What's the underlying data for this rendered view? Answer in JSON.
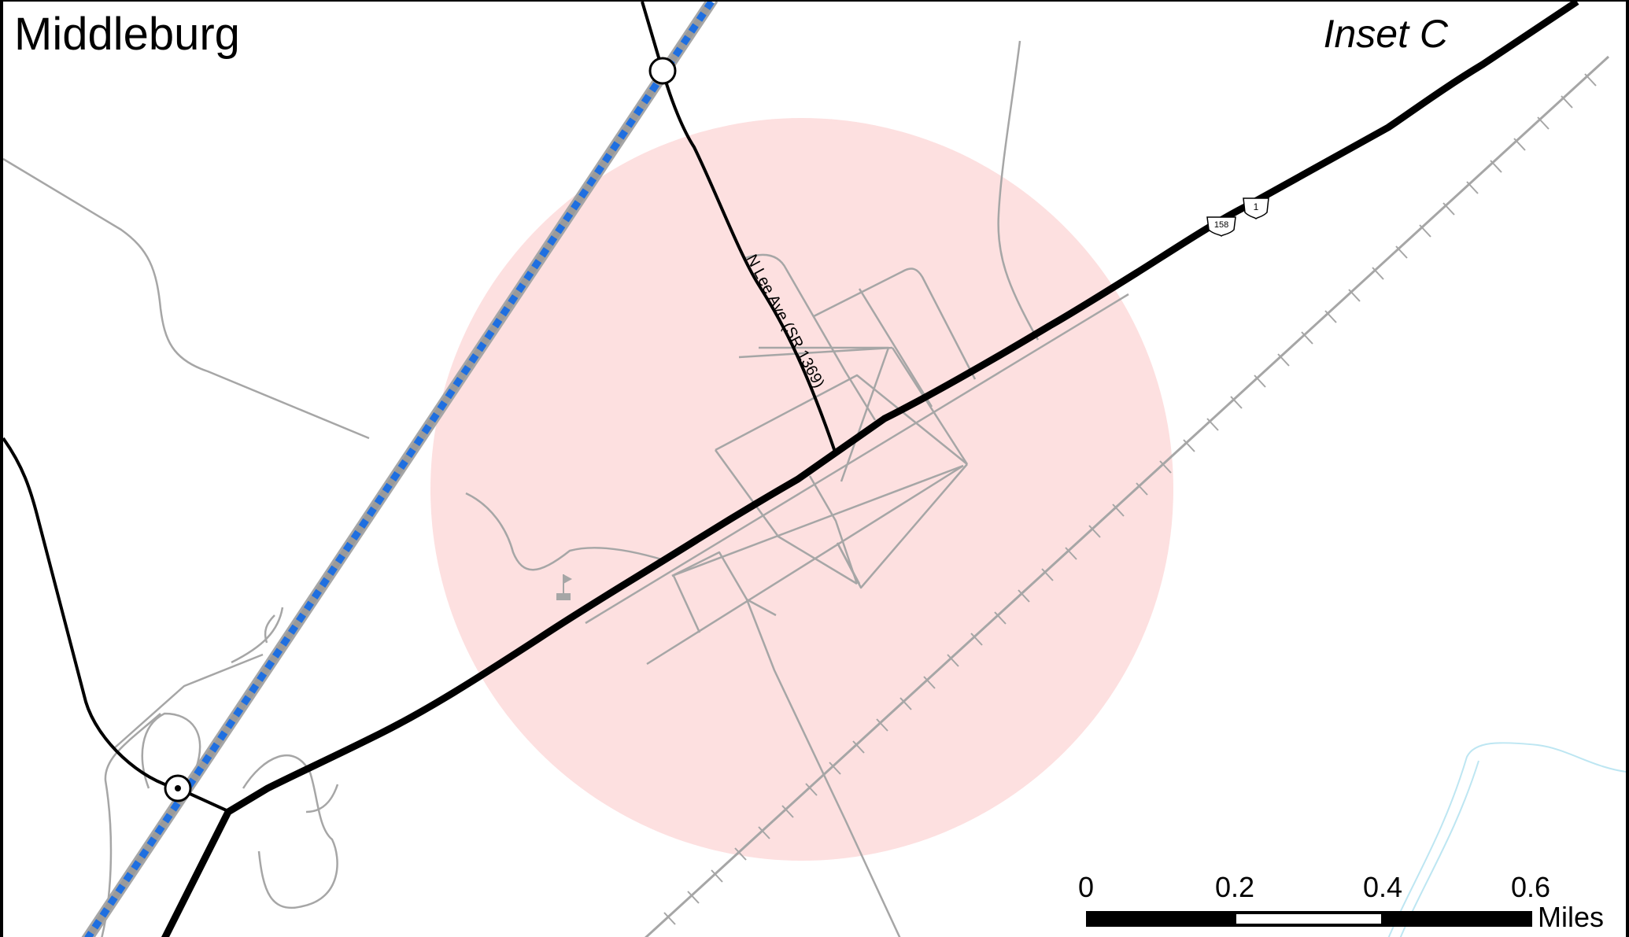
{
  "map": {
    "town_name": "Middleburg",
    "inset_label": "Inset C",
    "road_label": "N Lee Ave (SR 1369)",
    "shields": [
      {
        "type": "us-route",
        "number": "158"
      },
      {
        "type": "interstate-style",
        "number": "1"
      }
    ],
    "colors": {
      "buffer_fill": "#fde0e0",
      "minor_road": "#a6a6a6",
      "major_road": "#000000",
      "rail_blue": "#1f6fe0",
      "rail_gray": "#9a9a9a",
      "stream": "#bde6f2"
    },
    "scale_bar": {
      "ticks": [
        "0",
        "0.2",
        "0.4",
        "0.6"
      ],
      "unit": "Miles"
    }
  }
}
